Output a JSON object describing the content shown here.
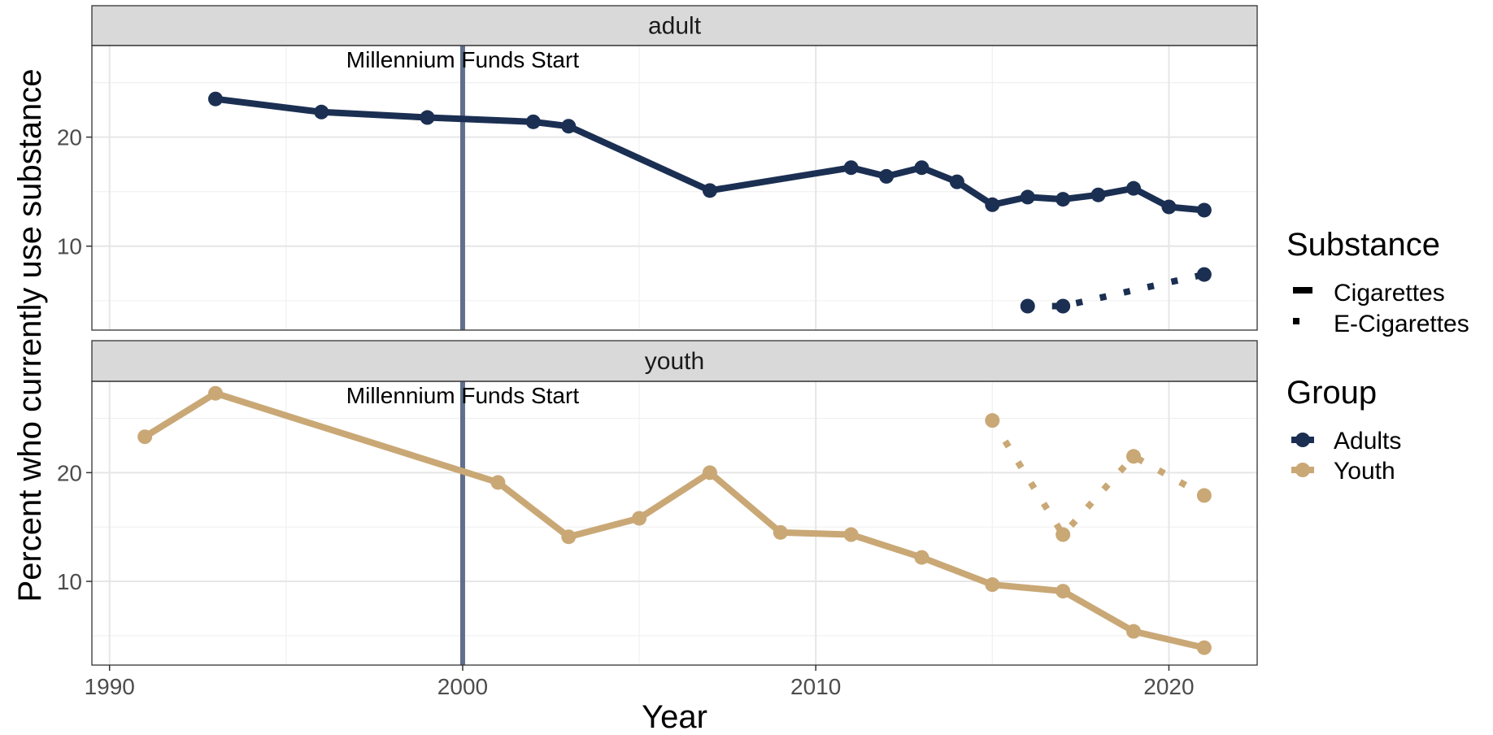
{
  "chart_data": {
    "type": "line",
    "facets": [
      {
        "label": "adult",
        "series": [
          {
            "group": "Adults",
            "substance": "Cigarettes",
            "x": [
              1993,
              1996,
              1999,
              2002,
              2003,
              2007,
              2011,
              2012,
              2013,
              2014,
              2015,
              2016,
              2017,
              2018,
              2019,
              2020,
              2021
            ],
            "y": [
              23.5,
              22.3,
              21.8,
              21.4,
              21.0,
              15.1,
              17.2,
              16.4,
              17.2,
              15.9,
              13.8,
              14.5,
              14.3,
              14.7,
              15.3,
              13.6,
              13.3
            ]
          },
          {
            "group": "Adults",
            "substance": "E-Cigarettes",
            "x": [
              2016,
              2017,
              2021
            ],
            "y": [
              4.5,
              4.5,
              7.4
            ]
          }
        ]
      },
      {
        "label": "youth",
        "series": [
          {
            "group": "Youth",
            "substance": "Cigarettes",
            "x": [
              1991,
              1993,
              2001,
              2003,
              2005,
              2007,
              2009,
              2011,
              2013,
              2015,
              2017,
              2019,
              2021
            ],
            "y": [
              23.3,
              27.3,
              19.1,
              14.1,
              15.8,
              20.0,
              14.5,
              14.3,
              12.2,
              9.7,
              9.1,
              5.4,
              3.9
            ]
          },
          {
            "group": "Youth",
            "substance": "E-Cigarettes",
            "x": [
              2015,
              2017,
              2019,
              2021
            ],
            "y": [
              24.8,
              14.3,
              21.5,
              17.9
            ]
          }
        ]
      }
    ],
    "xlabel": "Year",
    "ylabel": "Percent who currently use substance",
    "xlim": [
      1989.5,
      2022.5
    ],
    "ylim": [
      2.3,
      28.4
    ],
    "xticks": [
      1990,
      2000,
      2010,
      2020
    ],
    "yticks": [
      10,
      20
    ],
    "annotation": {
      "x": 2000,
      "text": "Millennium Funds Start"
    },
    "grid": true,
    "legend_position": "right",
    "legend": {
      "substance": {
        "title": "Substance",
        "entries": [
          "Cigarettes",
          "E-Cigarettes"
        ]
      },
      "group": {
        "title": "Group",
        "entries": [
          "Adults",
          "Youth"
        ]
      }
    },
    "colors": {
      "Adults": "#1b2f52",
      "Youth": "#c9a876",
      "annotation_line": "#5f6f8c",
      "strip": "#d9d9d9"
    }
  }
}
